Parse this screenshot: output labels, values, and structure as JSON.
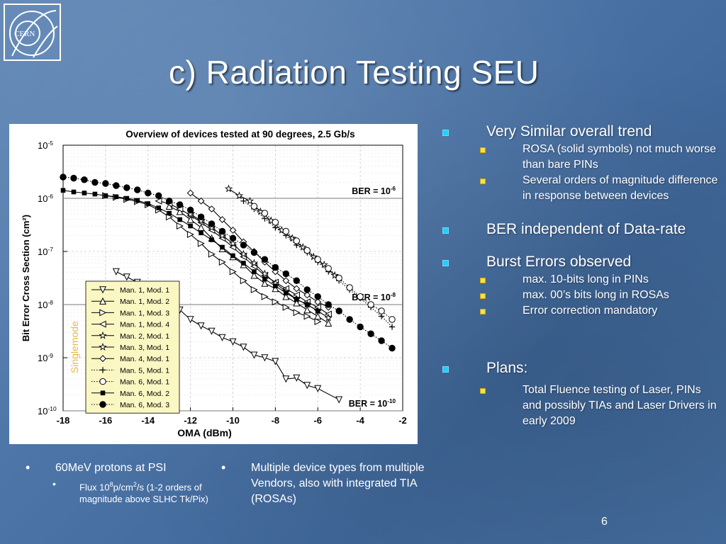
{
  "slide": {
    "title": "c) Radiation Testing SEU",
    "logo_text": "CERN",
    "page_number": "6"
  },
  "right_bullets": [
    {
      "text": "Very Similar overall trend",
      "sub": [
        "ROSA (solid symbols) not much worse than bare PINs",
        "Several orders of magnitude difference in response between devices"
      ]
    },
    {
      "text": "BER independent of Data-rate",
      "sub": []
    },
    {
      "text": "Burst Errors observed",
      "sub": [
        "max. 10-bits long in PINs",
        "max. 00’s bits long in ROSAs",
        "Error correction mandatory"
      ]
    },
    {
      "text": "Plans:",
      "sub": [
        "Total Fluence testing of Laser, PINs and possibly TIAs and Laser Drivers in early 2009"
      ]
    }
  ],
  "bottom_left": {
    "main": "60MeV protons at PSI",
    "sub_prefix": "Flux 10",
    "sub_sup1": "8",
    "sub_mid": "p/cm",
    "sub_sup2": "2",
    "sub_suffix": "/s (1-2 orders of magnitude above SLHC Tk/Pix)"
  },
  "bottom_mid": {
    "main": "Multiple device types from multiple Vendors, also with integrated TIA (ROSAs)"
  },
  "chart_data": {
    "type": "line",
    "title": "Overview of devices tested at 90 degrees, 2.5 Gb/s",
    "xlabel": "OMA (dBm)",
    "ylabel": "Bit Error Cross Section (cm²)",
    "xlim": [
      -18,
      -2
    ],
    "ylim_exp": [
      -10,
      -5
    ],
    "y_scale": "log",
    "x_ticks": [
      "-18",
      "-16",
      "-14",
      "-12",
      "-10",
      "-8",
      "-6",
      "-4",
      "-2"
    ],
    "y_ticks": [
      {
        "exp": -5,
        "label": "10",
        "sup": "-5"
      },
      {
        "exp": -6,
        "label": "10",
        "sup": "-6"
      },
      {
        "exp": -7,
        "label": "10",
        "sup": "-7"
      },
      {
        "exp": -8,
        "label": "10",
        "sup": "-8"
      },
      {
        "exp": -9,
        "label": "10",
        "sup": "-9"
      },
      {
        "exp": -10,
        "label": "10",
        "sup": "-10"
      }
    ],
    "ber_lines": [
      {
        "exp": -6,
        "label": "BER = 10",
        "sup": "-6"
      },
      {
        "exp": -8,
        "label": "BER = 10",
        "sup": "-8"
      },
      {
        "exp": -10,
        "label": "BER = 10",
        "sup": "-10"
      }
    ],
    "grid": true,
    "side_label": "Singlemode",
    "legend_position": "bottom-left",
    "series": [
      {
        "name": "Man. 1, Mod. 1",
        "marker": "tri-down",
        "line": "solid",
        "points": [
          [
            -15.5,
            -7.38
          ],
          [
            -15,
            -7.48
          ],
          [
            -14.5,
            -7.58
          ],
          [
            -14,
            -7.72
          ],
          [
            -13.5,
            -7.85
          ],
          [
            -13,
            -7.95
          ],
          [
            -12.5,
            -8.1
          ],
          [
            -12,
            -8.28
          ],
          [
            -11.5,
            -8.4
          ],
          [
            -11,
            -8.5
          ],
          [
            -10.5,
            -8.62
          ],
          [
            -10,
            -8.7
          ],
          [
            -9.5,
            -8.8
          ],
          [
            -9,
            -8.95
          ],
          [
            -8.5,
            -9.0
          ],
          [
            -8,
            -9.07
          ],
          [
            -7.5,
            -9.4
          ],
          [
            -7,
            -9.38
          ],
          [
            -6.5,
            -9.52
          ],
          [
            -6,
            -9.58
          ],
          [
            -5,
            -9.79
          ]
        ]
      },
      {
        "name": "Man. 1, Mod. 2",
        "marker": "tri-up",
        "line": "solid",
        "points": [
          [
            -13,
            -6.15
          ],
          [
            -12.5,
            -6.25
          ],
          [
            -12,
            -6.4
          ],
          [
            -11.5,
            -6.55
          ],
          [
            -11,
            -6.75
          ],
          [
            -10.5,
            -6.95
          ],
          [
            -10,
            -7.1
          ],
          [
            -9.5,
            -7.25
          ],
          [
            -9,
            -7.45
          ],
          [
            -8.5,
            -7.6
          ],
          [
            -8,
            -7.7
          ],
          [
            -7.5,
            -7.85
          ],
          [
            -7,
            -7.97
          ],
          [
            -6.5,
            -8.1
          ],
          [
            -6,
            -8.22
          ],
          [
            -5.5,
            -8.35
          ]
        ]
      },
      {
        "name": "Man. 1, Mod. 3",
        "marker": "tri-right",
        "line": "solid",
        "points": [
          [
            -16,
            -5.95
          ],
          [
            -15.5,
            -5.98
          ],
          [
            -15,
            -6.02
          ],
          [
            -14.5,
            -6.06
          ],
          [
            -14,
            -6.12
          ],
          [
            -13.5,
            -6.22
          ],
          [
            -13,
            -6.35
          ],
          [
            -12.5,
            -6.52
          ],
          [
            -12,
            -6.68
          ],
          [
            -11.5,
            -6.85
          ],
          [
            -11,
            -7.05
          ],
          [
            -10.5,
            -7.2
          ],
          [
            -10,
            -7.38
          ],
          [
            -9.5,
            -7.55
          ],
          [
            -9,
            -7.72
          ],
          [
            -8.5,
            -7.85
          ],
          [
            -8,
            -7.95
          ],
          [
            -7.5,
            -8.05
          ],
          [
            -7,
            -8.15
          ],
          [
            -6.5,
            -8.22
          ],
          [
            -6,
            -8.32
          ]
        ]
      },
      {
        "name": "Man. 1, Mod. 4",
        "marker": "tri-left",
        "line": "solid",
        "points": [
          [
            -13.5,
            -6.05
          ],
          [
            -13,
            -6.1
          ],
          [
            -12.5,
            -6.2
          ],
          [
            -12,
            -6.32
          ],
          [
            -11.5,
            -6.45
          ],
          [
            -11,
            -6.6
          ],
          [
            -10.5,
            -6.75
          ],
          [
            -10,
            -6.92
          ],
          [
            -9.5,
            -7.1
          ],
          [
            -9,
            -7.28
          ],
          [
            -8.5,
            -7.45
          ],
          [
            -8,
            -7.58
          ],
          [
            -7.5,
            -7.7
          ],
          [
            -7,
            -7.82
          ],
          [
            -6.5,
            -7.95
          ],
          [
            -6,
            -8.05
          ],
          [
            -5.5,
            -8.18
          ]
        ]
      },
      {
        "name": "Man. 2, Mod. 1",
        "marker": "star",
        "line": "solid",
        "points": [
          [
            -12,
            -6.3
          ],
          [
            -11.5,
            -6.42
          ],
          [
            -11,
            -6.55
          ],
          [
            -10.5,
            -6.7
          ],
          [
            -10,
            -6.85
          ],
          [
            -9.5,
            -7.05
          ],
          [
            -9,
            -7.22
          ],
          [
            -8.5,
            -7.42
          ],
          [
            -8,
            -7.6
          ],
          [
            -7.5,
            -7.75
          ],
          [
            -7,
            -7.9
          ],
          [
            -6.5,
            -8.0
          ],
          [
            -6,
            -8.12
          ],
          [
            -5.5,
            -8.25
          ]
        ]
      },
      {
        "name": "Man. 3, Mod. 1",
        "marker": "star",
        "line": "solid",
        "points": [
          [
            -10.2,
            -5.82
          ],
          [
            -9.7,
            -5.95
          ],
          [
            -9.2,
            -6.05
          ],
          [
            -8.7,
            -6.25
          ],
          [
            -8.2,
            -6.42
          ],
          [
            -7.7,
            -6.6
          ],
          [
            -7.2,
            -6.75
          ],
          [
            -6.7,
            -6.92
          ],
          [
            -6.2,
            -7.1
          ],
          [
            -5.7,
            -7.25
          ],
          [
            -5.2,
            -7.45
          ]
        ]
      },
      {
        "name": "Man. 4, Mod. 1",
        "marker": "diamond",
        "line": "solid",
        "points": [
          [
            -12,
            -5.9
          ],
          [
            -11.5,
            -6.05
          ],
          [
            -11,
            -6.2
          ],
          [
            -10.5,
            -6.4
          ],
          [
            -10,
            -6.6
          ],
          [
            -9.5,
            -6.82
          ],
          [
            -9,
            -7.0
          ],
          [
            -8.5,
            -7.2
          ],
          [
            -8,
            -7.38
          ],
          [
            -7.5,
            -7.55
          ],
          [
            -7,
            -7.7
          ],
          [
            -6.5,
            -7.82
          ],
          [
            -6,
            -7.95
          ],
          [
            -5.5,
            -8.05
          ]
        ]
      },
      {
        "name": "Man. 5, Mod. 1",
        "marker": "plus",
        "line": "dotted",
        "points": [
          [
            -9.5,
            -6.05
          ],
          [
            -9,
            -6.2
          ],
          [
            -8.5,
            -6.38
          ],
          [
            -8,
            -6.55
          ],
          [
            -7.5,
            -6.7
          ],
          [
            -7,
            -6.88
          ],
          [
            -6.5,
            -7.02
          ],
          [
            -6,
            -7.2
          ],
          [
            -5.5,
            -7.38
          ],
          [
            -5,
            -7.55
          ],
          [
            -4.5,
            -7.72
          ],
          [
            -4,
            -7.88
          ],
          [
            -3.5,
            -8.05
          ],
          [
            -3,
            -8.22
          ],
          [
            -2.5,
            -8.42
          ]
        ]
      },
      {
        "name": "Man. 6, Mod. 1",
        "marker": "circle-open",
        "line": "dotted",
        "points": [
          [
            -9,
            -6.15
          ],
          [
            -8.5,
            -6.28
          ],
          [
            -8,
            -6.45
          ],
          [
            -7.5,
            -6.62
          ],
          [
            -7,
            -6.8
          ],
          [
            -6.5,
            -6.98
          ],
          [
            -6,
            -7.15
          ],
          [
            -5.5,
            -7.32
          ],
          [
            -5,
            -7.5
          ],
          [
            -4.5,
            -7.68
          ],
          [
            -4,
            -7.85
          ],
          [
            -3.5,
            -8.0
          ],
          [
            -3,
            -8.12
          ],
          [
            -2.5,
            -8.28
          ]
        ]
      },
      {
        "name": "Man. 6, Mod. 2",
        "marker": "square-filled",
        "line": "solid",
        "points": [
          [
            -18,
            -5.85
          ],
          [
            -17.5,
            -5.88
          ],
          [
            -17,
            -5.9
          ],
          [
            -16.5,
            -5.92
          ],
          [
            -16,
            -5.95
          ],
          [
            -15.5,
            -5.97
          ],
          [
            -15,
            -6.0
          ],
          [
            -14.5,
            -6.04
          ],
          [
            -14,
            -6.1
          ],
          [
            -13.5,
            -6.18
          ],
          [
            -13,
            -6.28
          ],
          [
            -12.5,
            -6.4
          ],
          [
            -12,
            -6.52
          ],
          [
            -11.5,
            -6.65
          ],
          [
            -11,
            -6.78
          ],
          [
            -10.5,
            -6.92
          ],
          [
            -10,
            -7.08
          ],
          [
            -9.5,
            -7.22
          ],
          [
            -9,
            -7.38
          ],
          [
            -8.5,
            -7.52
          ],
          [
            -8,
            -7.65
          ],
          [
            -7.5,
            -7.78
          ],
          [
            -7,
            -7.9
          ],
          [
            -6.5,
            -8.0
          ],
          [
            -6,
            -8.12
          ]
        ]
      },
      {
        "name": "Man. 6, Mod. 3",
        "marker": "circle-filled",
        "line": "dotted",
        "points": [
          [
            -18,
            -5.6
          ],
          [
            -17.5,
            -5.62
          ],
          [
            -17,
            -5.65
          ],
          [
            -16.5,
            -5.7
          ],
          [
            -16,
            -5.72
          ],
          [
            -15.5,
            -5.76
          ],
          [
            -15,
            -5.8
          ],
          [
            -14.5,
            -5.84
          ],
          [
            -14,
            -5.9
          ],
          [
            -13.5,
            -5.95
          ],
          [
            -13,
            -6.05
          ],
          [
            -12.5,
            -6.12
          ],
          [
            -12,
            -6.22
          ],
          [
            -11.5,
            -6.35
          ],
          [
            -11,
            -6.48
          ],
          [
            -10.5,
            -6.62
          ],
          [
            -10,
            -6.75
          ],
          [
            -9.5,
            -6.88
          ],
          [
            -9,
            -7.02
          ],
          [
            -8.5,
            -7.15
          ],
          [
            -8,
            -7.3
          ],
          [
            -7.5,
            -7.42
          ],
          [
            -7,
            -7.55
          ],
          [
            -6.5,
            -7.72
          ],
          [
            -6,
            -7.85
          ],
          [
            -5.5,
            -8.0
          ],
          [
            -5,
            -8.12
          ],
          [
            -4.5,
            -8.28
          ],
          [
            -4,
            -8.42
          ],
          [
            -3.5,
            -8.55
          ],
          [
            -3,
            -8.68
          ],
          [
            -2.5,
            -8.82
          ]
        ]
      }
    ]
  }
}
